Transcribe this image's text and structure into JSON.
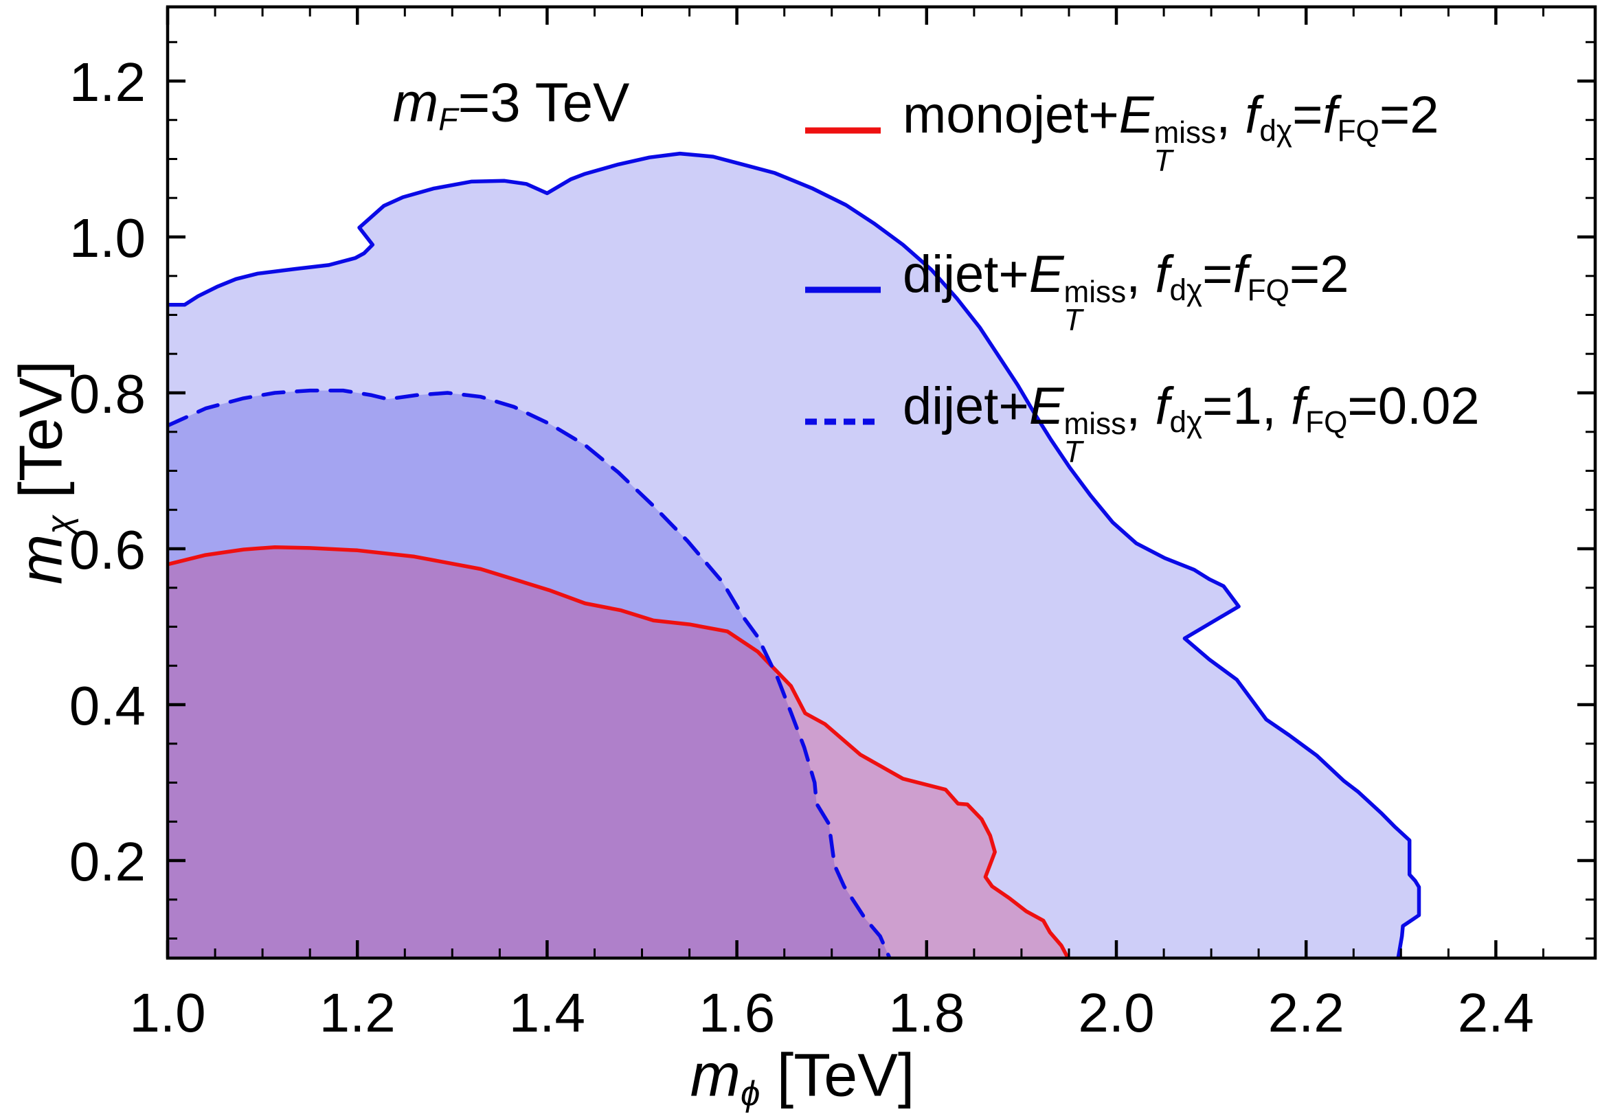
{
  "figure": {
    "background": "#ffffff",
    "frame_color": "#000000",
    "title_segments": [
      {
        "t": "m",
        "i": 1
      },
      {
        "sb": "F",
        "i": 1
      },
      {
        "t": "=3 TeV"
      }
    ],
    "x_axis": {
      "title_segments": [
        {
          "t": "m",
          "i": 1
        },
        {
          "sb": "ϕ",
          "i": 1
        },
        {
          "t": " [TeV]"
        }
      ],
      "ticks": [
        {
          "v": 1.0,
          "label": "1.0"
        },
        {
          "v": 1.2,
          "label": "1.2"
        },
        {
          "v": 1.4,
          "label": "1.4"
        },
        {
          "v": 1.6,
          "label": "1.6"
        },
        {
          "v": 1.8,
          "label": "1.8"
        },
        {
          "v": 2.0,
          "label": "2.0"
        },
        {
          "v": 2.2,
          "label": "2.2"
        },
        {
          "v": 2.4,
          "label": "2.4"
        }
      ],
      "minor_step": 0.05
    },
    "y_axis": {
      "title_segments": [
        {
          "t": "m",
          "i": 1
        },
        {
          "sb": "χ",
          "i": 1
        },
        {
          "t": " [TeV]"
        }
      ],
      "ticks": [
        {
          "v": 0.2,
          "label": "0.2"
        },
        {
          "v": 0.4,
          "label": "0.4"
        },
        {
          "v": 0.6,
          "label": "0.6"
        },
        {
          "v": 0.8,
          "label": "0.8"
        },
        {
          "v": 1.0,
          "label": "1.0"
        },
        {
          "v": 1.2,
          "label": "1.2"
        }
      ],
      "minor_step": 0.05
    },
    "legend": {
      "position": "top-right-inside",
      "entries": [
        {
          "key": "monojet",
          "color": "#EE1010",
          "dashed": false,
          "segments": [
            {
              "t": "monojet+"
            },
            {
              "t": "E",
              "i": 1
            },
            {
              "st": [
                "miss",
                "T"
              ]
            },
            {
              "t": ", "
            },
            {
              "t": "f",
              "i": 1
            },
            {
              "sb": "dχ"
            },
            {
              "t": "="
            },
            {
              "t": "f",
              "i": 1
            },
            {
              "sb": "FQ"
            },
            {
              "t": "=2"
            }
          ]
        },
        {
          "key": "dijet-strong",
          "color": "#0A0AE6",
          "dashed": false,
          "segments": [
            {
              "t": "dijet+"
            },
            {
              "t": "E",
              "i": 1
            },
            {
              "st": [
                "miss",
                "T"
              ]
            },
            {
              "t": ", "
            },
            {
              "t": "f",
              "i": 1
            },
            {
              "sb": "dχ"
            },
            {
              "t": "="
            },
            {
              "t": "f",
              "i": 1
            },
            {
              "sb": "FQ"
            },
            {
              "t": "=2"
            }
          ]
        },
        {
          "key": "dijet-weak",
          "color": "#0A0AE6",
          "dashed": true,
          "segments": [
            {
              "t": "dijet+"
            },
            {
              "t": "E",
              "i": 1
            },
            {
              "st": [
                "miss",
                "T"
              ]
            },
            {
              "t": ", "
            },
            {
              "t": "f",
              "i": 1
            },
            {
              "sb": "dχ"
            },
            {
              "t": "=1, "
            },
            {
              "t": "f",
              "i": 1
            },
            {
              "sb": "FQ"
            },
            {
              "t": "=0.02"
            }
          ]
        }
      ]
    }
  },
  "chart_data": {
    "type": "area",
    "description": "Exclusion regions in the m_phi vs m_chi plane for m_F = 3 TeV; each region is bounded above by its contour and filled down to the axes with translucent color.",
    "title": "m_F=3 TeV",
    "xlabel": "m_phi [TeV]",
    "ylabel": "m_chi [TeV]",
    "xlim": [
      1.0,
      2.505
    ],
    "ylim": [
      0.075,
      1.295
    ],
    "grid": false,
    "series": [
      {
        "name": "dijet+ET_miss, f_dchi=f_FQ=2",
        "key": "dijet-strong",
        "style": "solid",
        "line_color": "#0A0AE6",
        "fill_color": "#2020DD",
        "fill_opacity": 0.22,
        "points": [
          [
            1.0,
            0.913
          ],
          [
            1.018,
            0.913
          ],
          [
            1.032,
            0.924
          ],
          [
            1.052,
            0.936
          ],
          [
            1.072,
            0.946
          ],
          [
            1.095,
            0.953
          ],
          [
            1.135,
            0.959
          ],
          [
            1.17,
            0.964
          ],
          [
            1.198,
            0.973
          ],
          [
            1.207,
            0.979
          ],
          [
            1.216,
            0.99
          ],
          [
            1.202,
            1.012
          ],
          [
            1.228,
            1.04
          ],
          [
            1.248,
            1.051
          ],
          [
            1.28,
            1.062
          ],
          [
            1.32,
            1.071
          ],
          [
            1.355,
            1.072
          ],
          [
            1.378,
            1.068
          ],
          [
            1.4,
            1.056
          ],
          [
            1.425,
            1.074
          ],
          [
            1.44,
            1.081
          ],
          [
            1.475,
            1.093
          ],
          [
            1.508,
            1.102
          ],
          [
            1.54,
            1.107
          ],
          [
            1.575,
            1.103
          ],
          [
            1.603,
            1.094
          ],
          [
            1.64,
            1.082
          ],
          [
            1.68,
            1.062
          ],
          [
            1.715,
            1.041
          ],
          [
            1.745,
            1.017
          ],
          [
            1.775,
            0.99
          ],
          [
            1.805,
            0.958
          ],
          [
            1.832,
            0.921
          ],
          [
            1.856,
            0.884
          ],
          [
            1.876,
            0.847
          ],
          [
            1.896,
            0.81
          ],
          [
            1.913,
            0.775
          ],
          [
            1.931,
            0.74
          ],
          [
            1.951,
            0.704
          ],
          [
            1.973,
            0.668
          ],
          [
            1.996,
            0.634
          ],
          [
            2.021,
            0.607
          ],
          [
            2.051,
            0.588
          ],
          [
            2.082,
            0.573
          ],
          [
            2.098,
            0.561
          ],
          [
            2.113,
            0.552
          ],
          [
            2.129,
            0.526
          ],
          [
            2.072,
            0.485
          ],
          [
            2.098,
            0.458
          ],
          [
            2.127,
            0.432
          ],
          [
            2.158,
            0.381
          ],
          [
            2.182,
            0.361
          ],
          [
            2.211,
            0.335
          ],
          [
            2.24,
            0.302
          ],
          [
            2.255,
            0.288
          ],
          [
            2.28,
            0.26
          ],
          [
            2.293,
            0.244
          ],
          [
            2.309,
            0.226
          ],
          [
            2.309,
            0.182
          ],
          [
            2.315,
            0.174
          ],
          [
            2.319,
            0.166
          ],
          [
            2.319,
            0.13
          ],
          [
            2.313,
            0.125
          ],
          [
            2.302,
            0.116
          ],
          [
            2.301,
            0.103
          ],
          [
            2.297,
            0.075
          ]
        ]
      },
      {
        "name": "dijet+ET_miss, f_dchi=1, f_FQ=0.02",
        "key": "dijet-weak",
        "style": "dashed",
        "line_color": "#0A0AE6",
        "fill_color": "#2020DD",
        "fill_opacity": 0.24,
        "points": [
          [
            1.0,
            0.758
          ],
          [
            1.04,
            0.78
          ],
          [
            1.08,
            0.793
          ],
          [
            1.113,
            0.8
          ],
          [
            1.15,
            0.803
          ],
          [
            1.185,
            0.803
          ],
          [
            1.215,
            0.797
          ],
          [
            1.232,
            0.792
          ],
          [
            1.262,
            0.797
          ],
          [
            1.295,
            0.8
          ],
          [
            1.33,
            0.795
          ],
          [
            1.365,
            0.782
          ],
          [
            1.403,
            0.76
          ],
          [
            1.44,
            0.733
          ],
          [
            1.475,
            0.698
          ],
          [
            1.512,
            0.655
          ],
          [
            1.548,
            0.61
          ],
          [
            1.585,
            0.557
          ],
          [
            1.607,
            0.512
          ],
          [
            1.622,
            0.487
          ],
          [
            1.643,
            0.434
          ],
          [
            1.657,
            0.39
          ],
          [
            1.671,
            0.345
          ],
          [
            1.682,
            0.3
          ],
          [
            1.684,
            0.273
          ],
          [
            1.697,
            0.247
          ],
          [
            1.703,
            0.194
          ],
          [
            1.713,
            0.167
          ],
          [
            1.735,
            0.126
          ],
          [
            1.751,
            0.103
          ],
          [
            1.761,
            0.075
          ]
        ]
      },
      {
        "name": "monojet+ET_miss, f_dchi=f_FQ=2",
        "key": "monojet",
        "style": "solid",
        "line_color": "#EE1010",
        "fill_color": "#D02060",
        "fill_opacity": 0.27,
        "points": [
          [
            1.0,
            0.58
          ],
          [
            1.04,
            0.592
          ],
          [
            1.08,
            0.599
          ],
          [
            1.113,
            0.602
          ],
          [
            1.15,
            0.601
          ],
          [
            1.2,
            0.598
          ],
          [
            1.26,
            0.59
          ],
          [
            1.33,
            0.574
          ],
          [
            1.402,
            0.547
          ],
          [
            1.44,
            0.53
          ],
          [
            1.478,
            0.521
          ],
          [
            1.512,
            0.508
          ],
          [
            1.55,
            0.503
          ],
          [
            1.59,
            0.494
          ],
          [
            1.622,
            0.468
          ],
          [
            1.657,
            0.424
          ],
          [
            1.672,
            0.389
          ],
          [
            1.693,
            0.375
          ],
          [
            1.73,
            0.336
          ],
          [
            1.775,
            0.305
          ],
          [
            1.82,
            0.291
          ],
          [
            1.833,
            0.273
          ],
          [
            1.843,
            0.272
          ],
          [
            1.858,
            0.253
          ],
          [
            1.867,
            0.232
          ],
          [
            1.872,
            0.211
          ],
          [
            1.862,
            0.179
          ],
          [
            1.869,
            0.167
          ],
          [
            1.887,
            0.152
          ],
          [
            1.905,
            0.135
          ],
          [
            1.923,
            0.123
          ],
          [
            1.93,
            0.108
          ],
          [
            1.942,
            0.091
          ],
          [
            1.949,
            0.075
          ]
        ]
      }
    ]
  }
}
